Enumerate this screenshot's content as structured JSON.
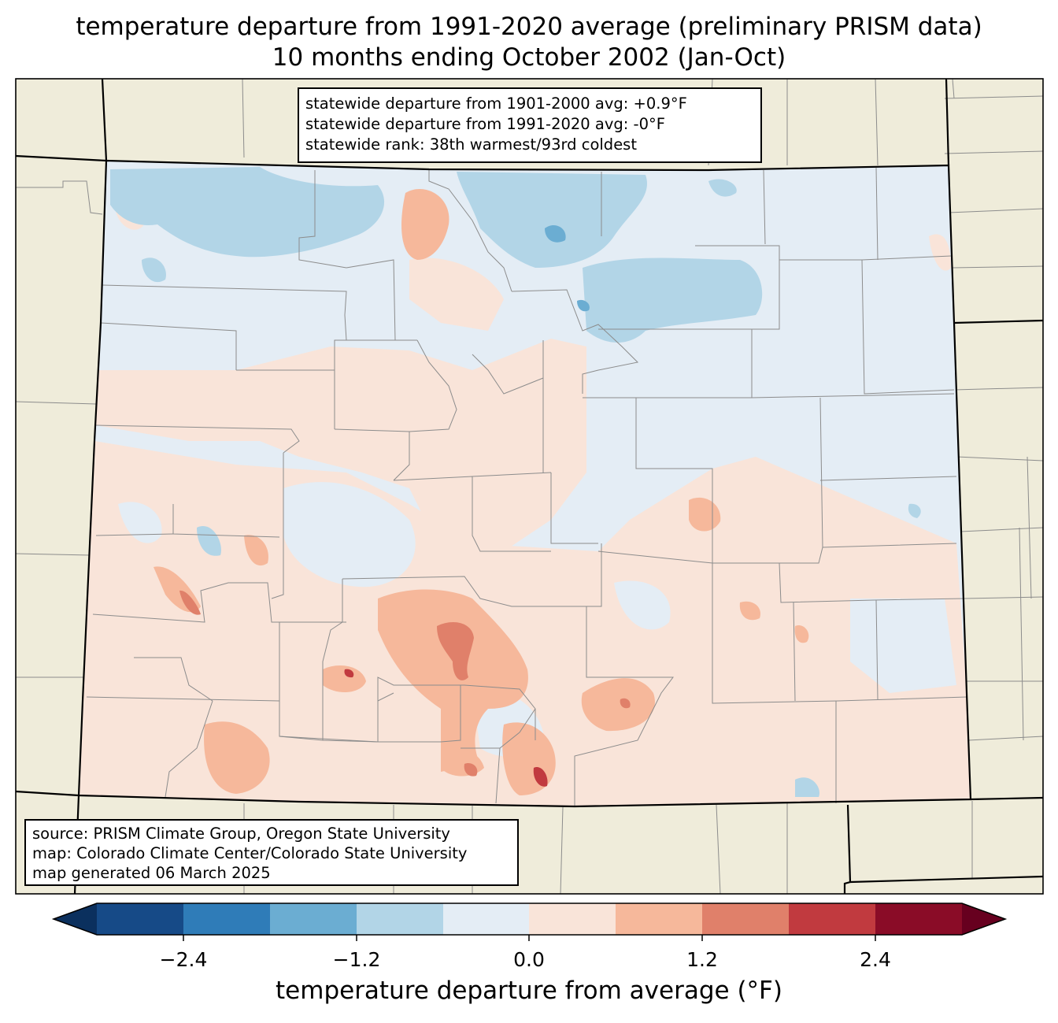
{
  "title": {
    "line1": "temperature departure from 1991-2020 average (preliminary PRISM data)",
    "line2": "10 months ending October 2002 (Jan-Oct)"
  },
  "stats": {
    "line1": "statewide departure from 1901-2000 avg: +0.9°F",
    "line2": "statewide departure from 1991-2020 avg: -0°F",
    "line3": "statewide rank: 38th warmest/93rd coldest"
  },
  "source": {
    "line1": "source: PRISM Climate Group, Oregon State University",
    "line2": "map: Colorado Climate Center/Colorado State University",
    "line3": "map generated 06 March 2025"
  },
  "colorbar": {
    "label": "temperature departure from average (°F)",
    "ticks": [
      "−2.4",
      "−1.2",
      "0.0",
      "1.2",
      "2.4"
    ],
    "bins": [
      -3.0,
      -2.4,
      -1.8,
      -1.2,
      -0.6,
      0.0,
      0.6,
      1.2,
      1.8,
      2.4,
      3.0
    ],
    "colors": [
      "#164a87",
      "#2f7cb8",
      "#6badd2",
      "#b2d5e7",
      "#e4edf5",
      "#f9e4d9",
      "#f6b89b",
      "#e0806a",
      "#c13a3f",
      "#8a0c27"
    ],
    "extend_low_color": "#0b305e",
    "extend_high_color": "#67001f"
  },
  "map_colors": {
    "background": "#efecda",
    "state_fill": "#e4edf5"
  }
}
